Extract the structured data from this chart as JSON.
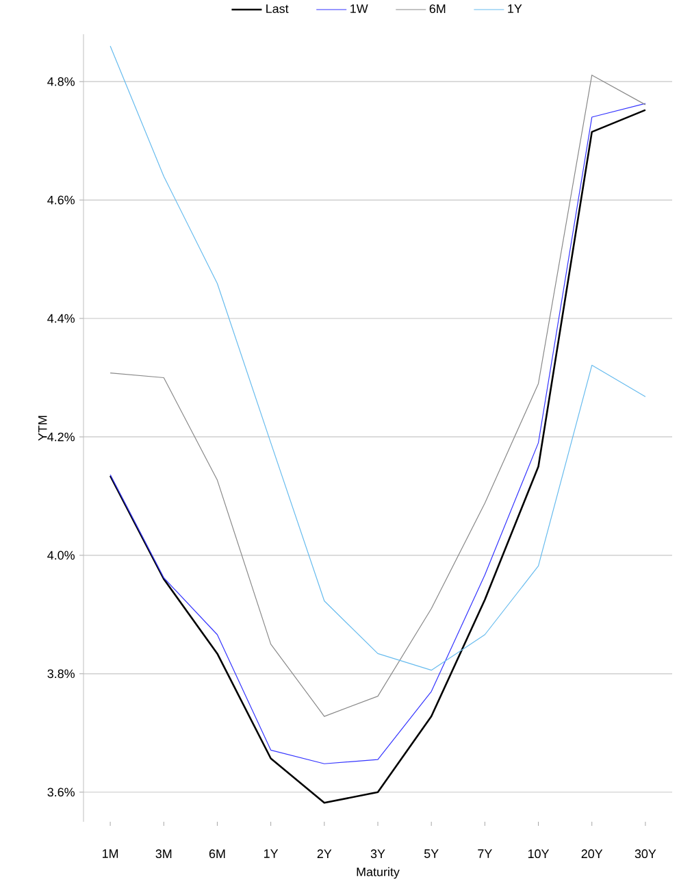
{
  "chart_data": {
    "type": "line",
    "xlabel": "Maturity",
    "ylabel": "YTM",
    "categories": [
      "1M",
      "3M",
      "6M",
      "1Y",
      "2Y",
      "3Y",
      "5Y",
      "7Y",
      "10Y",
      "20Y",
      "30Y"
    ],
    "series": [
      {
        "name": "Last",
        "color": "#000000",
        "values": [
          4.134,
          3.96,
          3.834,
          3.657,
          3.582,
          3.6,
          3.728,
          3.925,
          4.15,
          4.715,
          4.752
        ]
      },
      {
        "name": "1W",
        "color": "#3333ff",
        "values": [
          4.136,
          3.962,
          3.866,
          3.671,
          3.648,
          3.655,
          3.77,
          3.967,
          4.19,
          4.74,
          4.763
        ]
      },
      {
        "name": "6M",
        "color": "#888888",
        "values": [
          4.308,
          4.3,
          4.127,
          3.85,
          3.728,
          3.762,
          3.91,
          4.088,
          4.29,
          4.811,
          4.761
        ]
      },
      {
        "name": "1Y",
        "color": "#66bbee",
        "values": [
          4.86,
          4.64,
          4.459,
          4.19,
          3.923,
          3.834,
          3.806,
          3.866,
          3.982,
          4.321,
          4.268
        ]
      }
    ],
    "ylim": [
      3.55,
      4.88
    ],
    "yticks": [
      {
        "value": 3.6,
        "label": "3.6%"
      },
      {
        "value": 3.8,
        "label": "3.8%"
      },
      {
        "value": 4.0,
        "label": "4.0%"
      },
      {
        "value": 4.2,
        "label": "4.2%"
      },
      {
        "value": 4.4,
        "label": "4.4%"
      },
      {
        "value": 4.6,
        "label": "4.6%"
      },
      {
        "value": 4.8,
        "label": "4.8%"
      }
    ],
    "grid": "y",
    "legend": "top",
    "line_style": "solid",
    "marker": "none"
  }
}
